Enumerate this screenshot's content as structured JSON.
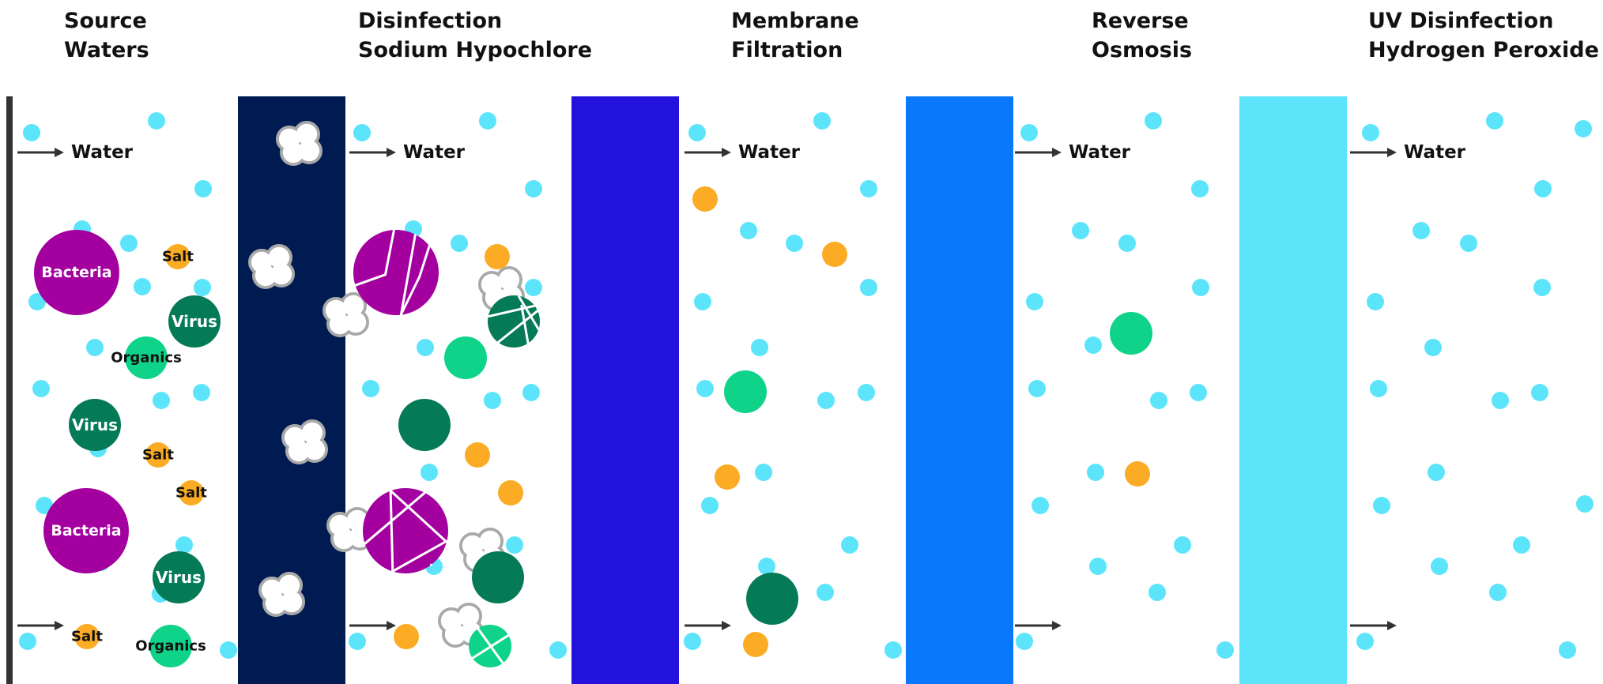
{
  "stages": [
    {
      "line1": "Source",
      "line2": "Waters"
    },
    {
      "line1": "Disinfection",
      "line2": "Sodium Hypochlore"
    },
    {
      "line1": "Membrane",
      "line2": "Filtration"
    },
    {
      "line1": "Reverse",
      "line2": "Osmosis"
    },
    {
      "line1": "UV Disinfection",
      "line2": "Hydrogen Peroxide"
    }
  ],
  "labels": {
    "water": "Water",
    "bacteria": "Bacteria",
    "virus": "Virus",
    "salt": "Salt",
    "organics": "Organics"
  },
  "colors": {
    "water_particle": "#5ce4fb",
    "bacteria": "#a3009f",
    "virus": "#047a57",
    "organics": "#0ed389",
    "salt": "#fbab24",
    "barrier_disinfection": "#001b52",
    "barrier_membrane": "#2311dc",
    "barrier_reverse_osmosis": "#0a78fb",
    "barrier_uv": "#5ce4fb",
    "hypochlorite_outline": "#a9a9a9",
    "arrow": "#333333"
  }
}
